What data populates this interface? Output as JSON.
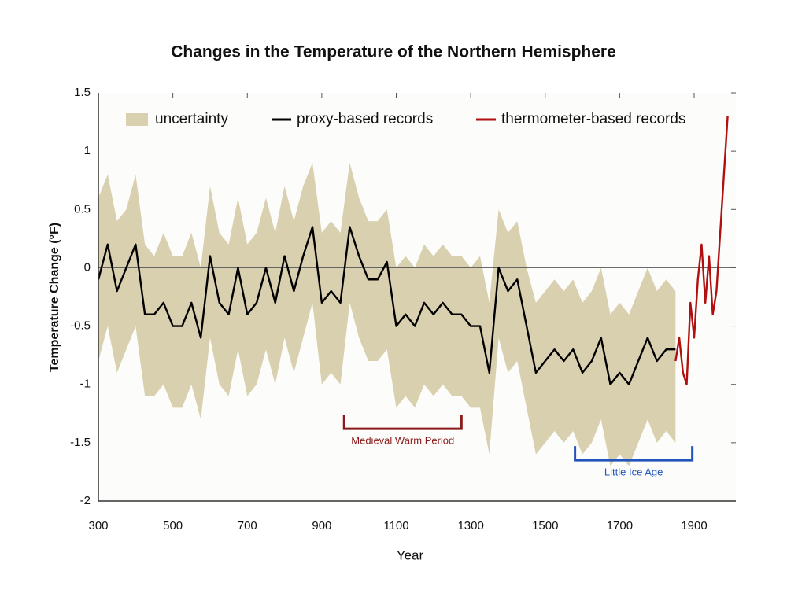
{
  "chart_data": {
    "type": "line",
    "title": "Changes in the Temperature of the Northern Hemisphere",
    "x_label": "Year",
    "y_label": "Temperature Change (°F)",
    "xlim": [
      300,
      2012
    ],
    "ylim": [
      -2,
      1.5
    ],
    "xticks": [
      300,
      500,
      700,
      900,
      1100,
      1300,
      1500,
      1700,
      1900
    ],
    "yticks": [
      1.5,
      1,
      0.5,
      0,
      -0.5,
      -1,
      -1.5,
      -2
    ],
    "reference_line": 0,
    "band": {
      "name": "uncertainty",
      "color": "#d9d0b0",
      "x": [
        300,
        325,
        350,
        375,
        400,
        425,
        450,
        475,
        500,
        525,
        550,
        575,
        600,
        625,
        650,
        675,
        700,
        725,
        750,
        775,
        800,
        825,
        850,
        875,
        900,
        925,
        950,
        975,
        1000,
        1025,
        1050,
        1075,
        1100,
        1125,
        1150,
        1175,
        1200,
        1225,
        1250,
        1275,
        1300,
        1325,
        1350,
        1375,
        1400,
        1425,
        1450,
        1475,
        1500,
        1525,
        1550,
        1575,
        1600,
        1625,
        1650,
        1675,
        1700,
        1725,
        1750,
        1775,
        1800,
        1825,
        1850
      ],
      "upper": [
        0.6,
        0.8,
        0.4,
        0.5,
        0.8,
        0.2,
        0.1,
        0.3,
        0.1,
        0.1,
        0.3,
        0.0,
        0.7,
        0.3,
        0.2,
        0.6,
        0.2,
        0.3,
        0.6,
        0.3,
        0.7,
        0.4,
        0.7,
        0.9,
        0.3,
        0.4,
        0.3,
        0.9,
        0.6,
        0.4,
        0.4,
        0.5,
        0.0,
        0.1,
        0.0,
        0.2,
        0.1,
        0.2,
        0.1,
        0.1,
        0.0,
        0.1,
        -0.3,
        0.5,
        0.3,
        0.4,
        0.0,
        -0.3,
        -0.2,
        -0.1,
        -0.2,
        -0.1,
        -0.3,
        -0.2,
        0.0,
        -0.4,
        -0.3,
        -0.4,
        -0.2,
        0.0,
        -0.2,
        -0.1,
        -0.2
      ],
      "lower": [
        -0.8,
        -0.5,
        -0.9,
        -0.7,
        -0.5,
        -1.1,
        -1.1,
        -1.0,
        -1.2,
        -1.2,
        -1.0,
        -1.3,
        -0.6,
        -1.0,
        -1.1,
        -0.7,
        -1.1,
        -1.0,
        -0.7,
        -1.0,
        -0.6,
        -0.9,
        -0.6,
        -0.3,
        -1.0,
        -0.9,
        -1.0,
        -0.3,
        -0.6,
        -0.8,
        -0.8,
        -0.7,
        -1.2,
        -1.1,
        -1.2,
        -1.0,
        -1.1,
        -1.0,
        -1.1,
        -1.1,
        -1.2,
        -1.2,
        -1.6,
        -0.6,
        -0.9,
        -0.8,
        -1.2,
        -1.6,
        -1.5,
        -1.4,
        -1.5,
        -1.4,
        -1.6,
        -1.5,
        -1.3,
        -1.7,
        -1.6,
        -1.7,
        -1.5,
        -1.3,
        -1.5,
        -1.4,
        -1.5
      ]
    },
    "series": [
      {
        "name": "proxy-based records",
        "color": "#000000",
        "x": [
          300,
          325,
          350,
          375,
          400,
          425,
          450,
          475,
          500,
          525,
          550,
          575,
          600,
          625,
          650,
          675,
          700,
          725,
          750,
          775,
          800,
          825,
          850,
          875,
          900,
          925,
          950,
          975,
          1000,
          1025,
          1050,
          1075,
          1100,
          1125,
          1150,
          1175,
          1200,
          1225,
          1250,
          1275,
          1300,
          1325,
          1350,
          1375,
          1400,
          1425,
          1450,
          1475,
          1500,
          1525,
          1550,
          1575,
          1600,
          1625,
          1650,
          1675,
          1700,
          1725,
          1750,
          1775,
          1800,
          1825,
          1850
        ],
        "values": [
          -0.1,
          0.2,
          -0.2,
          0.0,
          0.2,
          -0.4,
          -0.4,
          -0.3,
          -0.5,
          -0.5,
          -0.3,
          -0.6,
          0.1,
          -0.3,
          -0.4,
          0.0,
          -0.4,
          -0.3,
          0.0,
          -0.3,
          0.1,
          -0.2,
          0.1,
          0.35,
          -0.3,
          -0.2,
          -0.3,
          0.35,
          0.1,
          -0.1,
          -0.1,
          0.05,
          -0.5,
          -0.4,
          -0.5,
          -0.3,
          -0.4,
          -0.3,
          -0.4,
          -0.4,
          -0.5,
          -0.5,
          -0.9,
          0.0,
          -0.2,
          -0.1,
          -0.5,
          -0.9,
          -0.8,
          -0.7,
          -0.8,
          -0.7,
          -0.9,
          -0.8,
          -0.6,
          -1.0,
          -0.9,
          -1.0,
          -0.8,
          -0.6,
          -0.8,
          -0.7,
          -0.7
        ]
      },
      {
        "name": "thermometer-based records",
        "color": "#b01010",
        "x": [
          1850,
          1860,
          1870,
          1880,
          1890,
          1900,
          1910,
          1920,
          1930,
          1940,
          1950,
          1960,
          1970,
          1980,
          1990
        ],
        "values": [
          -0.8,
          -0.6,
          -0.9,
          -1.0,
          -0.3,
          -0.6,
          -0.1,
          0.2,
          -0.3,
          0.1,
          -0.4,
          -0.2,
          0.3,
          0.8,
          1.3
        ]
      }
    ],
    "periods": [
      {
        "label": "Medieval Warm Period",
        "start": 960,
        "end": 1275,
        "color": "#8b1a1a"
      },
      {
        "label": "Little Ice Age",
        "start": 1580,
        "end": 1895,
        "color": "#2255bb"
      }
    ]
  }
}
